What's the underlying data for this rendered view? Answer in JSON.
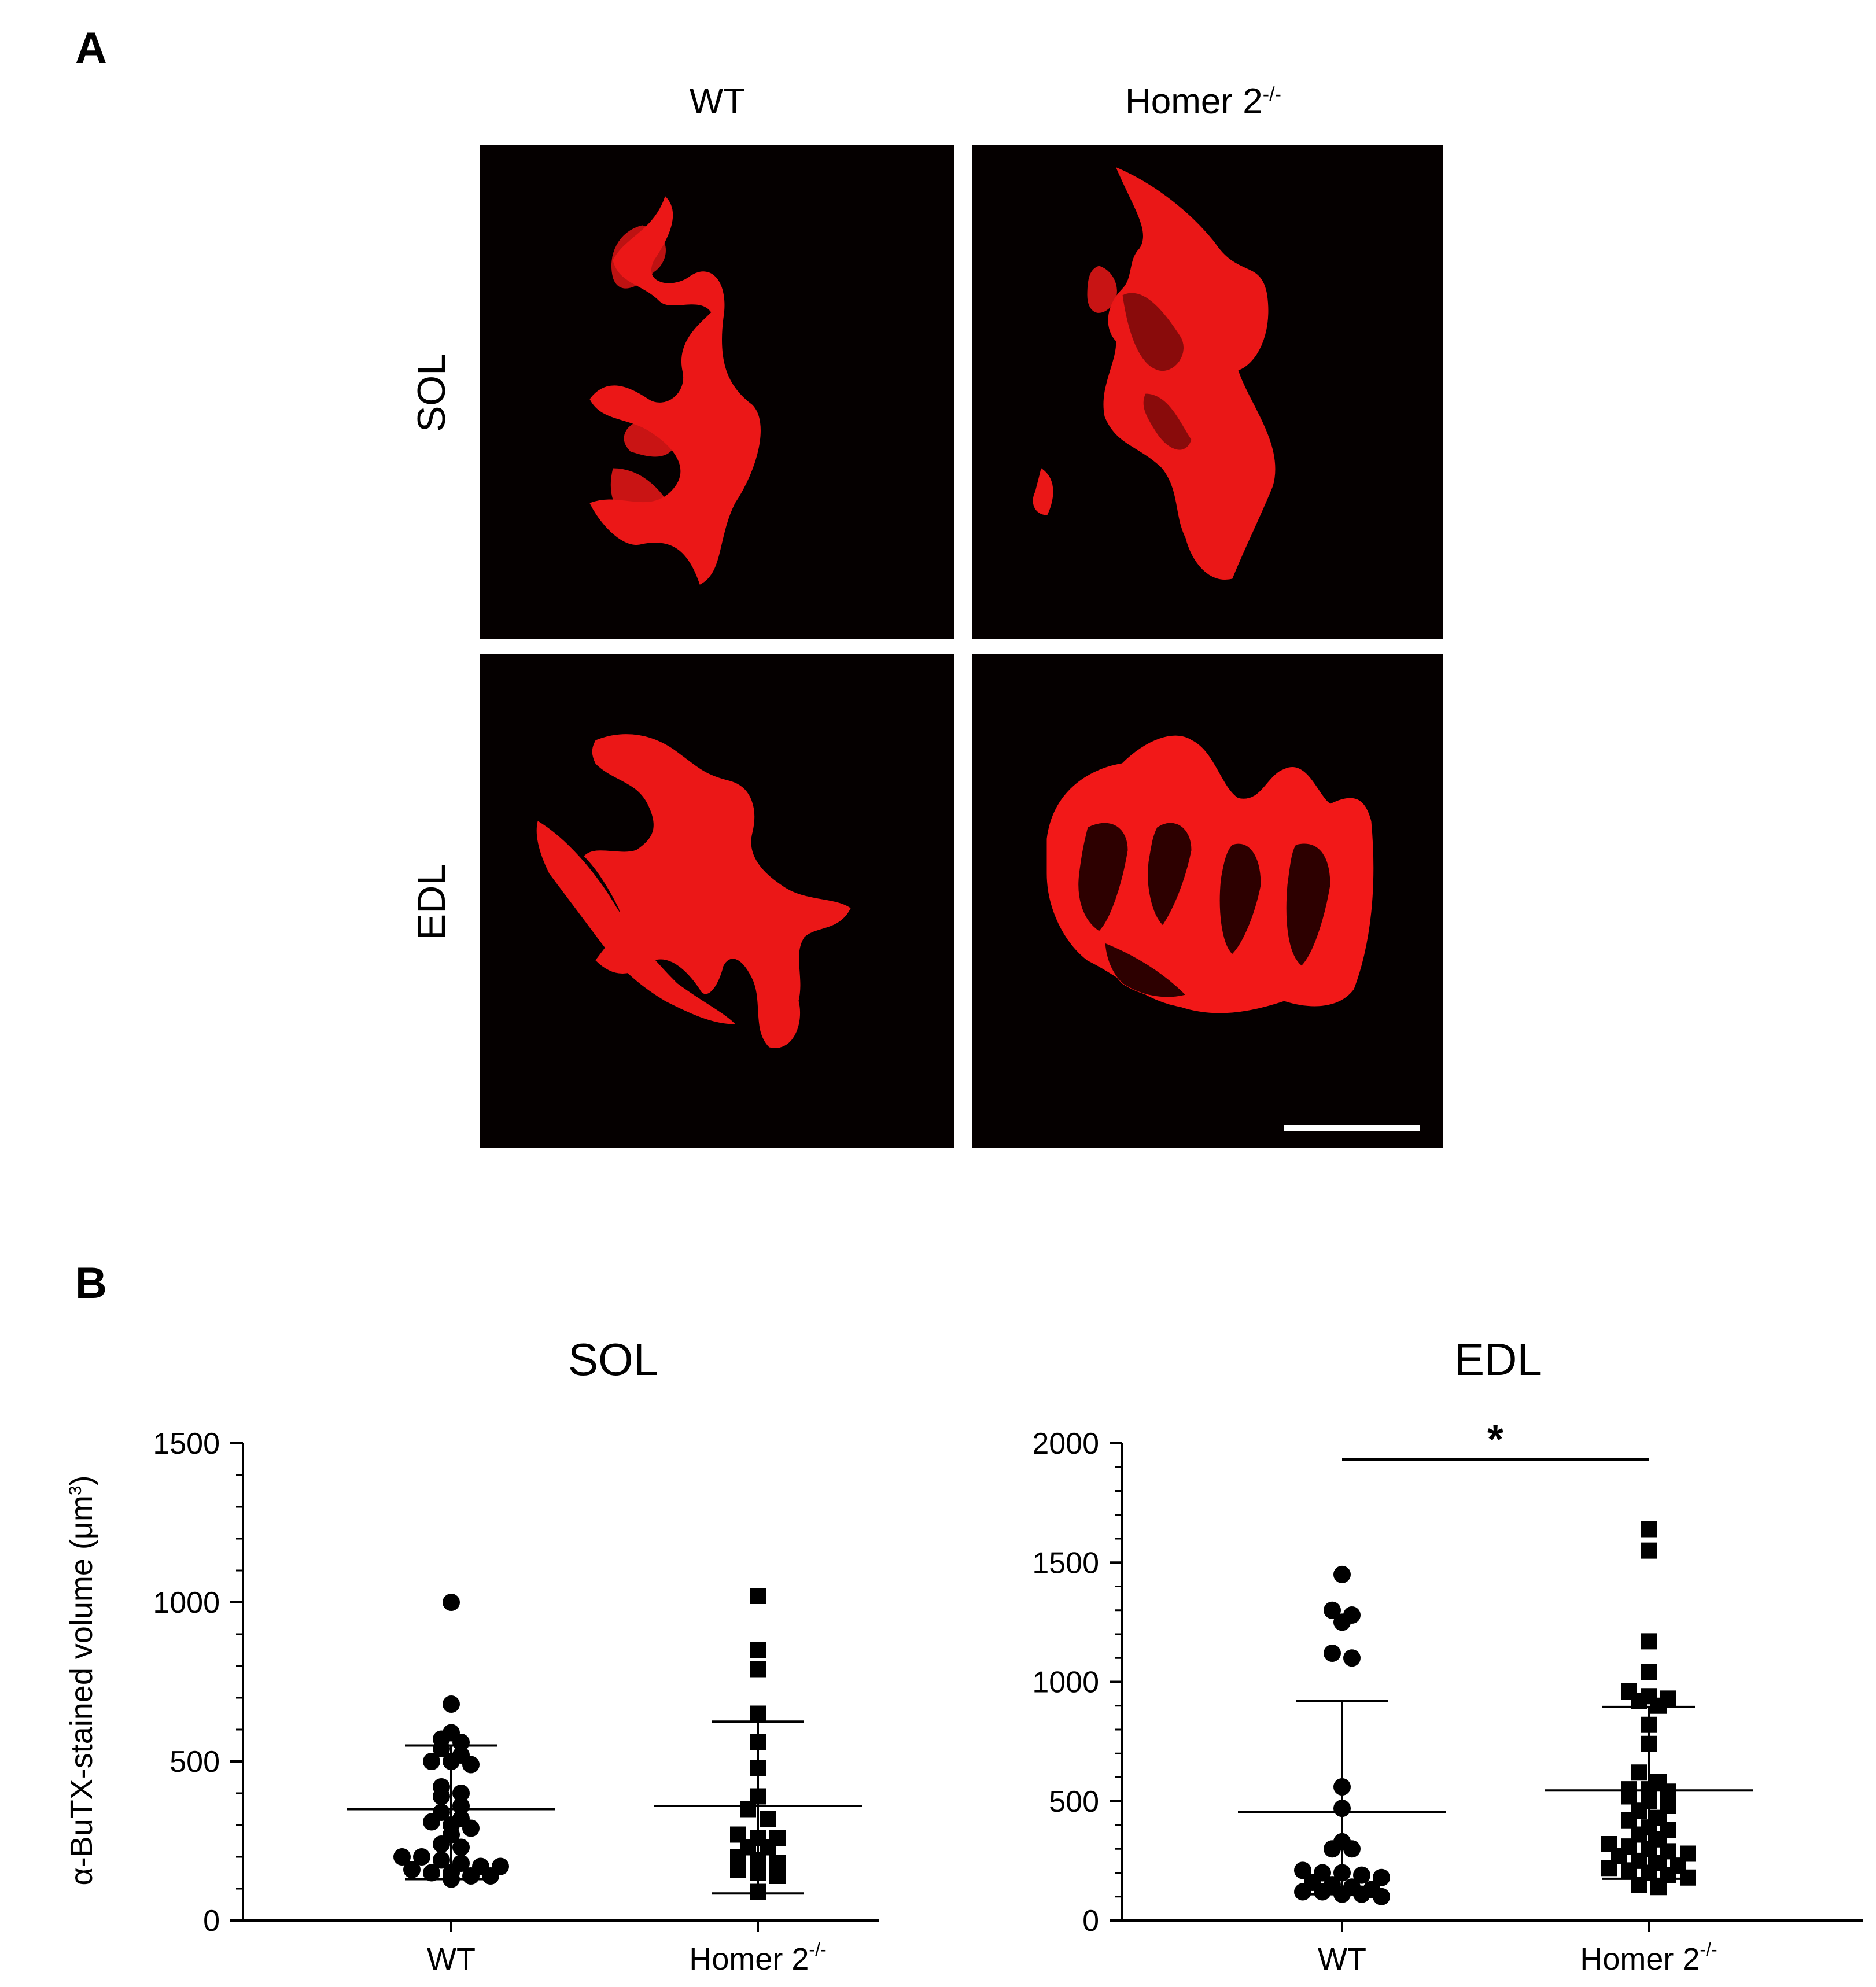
{
  "panel_a": {
    "letter": "A",
    "columns": [
      {
        "label": "WT",
        "sup": ""
      },
      {
        "label": "Homer 2",
        "sup": "-/-"
      }
    ],
    "rows": [
      "SOL",
      "EDL"
    ],
    "image_color": "#ff1a1a",
    "background_color": "#050000"
  },
  "panel_b": {
    "letter": "B",
    "ylabel": "α-BuTX-stained volume (μm",
    "ylabel_sup": "3",
    "ylabel_end": ")",
    "marker_color": "#000000"
  },
  "chart_data": [
    {
      "type": "scatter",
      "title": "SOL",
      "ylim": [
        0,
        1500
      ],
      "yticks": [
        0,
        500,
        1000,
        1500
      ],
      "categories": [
        "WT",
        "Homer 2-/-"
      ],
      "category_sup": [
        "",
        "-/-"
      ],
      "category_base": [
        "WT",
        "Homer 2"
      ],
      "series": [
        {
          "group": "WT",
          "marker": "circle",
          "mean": 350,
          "sd_upper": 550,
          "sd_lower": 130,
          "points": [
            1000,
            680,
            590,
            560,
            570,
            540,
            520,
            500,
            500,
            490,
            400,
            420,
            390,
            360,
            340,
            320,
            310,
            300,
            290,
            270,
            240,
            230,
            200,
            200,
            190,
            180,
            170,
            170,
            160,
            150,
            150,
            140,
            140,
            130
          ]
        },
        {
          "group": "Homer 2-/-",
          "marker": "square",
          "mean": 360,
          "sd_upper": 625,
          "sd_lower": 85,
          "points": [
            1020,
            850,
            790,
            650,
            560,
            480,
            390,
            350,
            320,
            270,
            260,
            260,
            230,
            230,
            200,
            190,
            180,
            160,
            150,
            140,
            90
          ]
        }
      ],
      "significance": ""
    },
    {
      "type": "scatter",
      "title": "EDL",
      "ylim": [
        0,
        2000
      ],
      "yticks": [
        0,
        500,
        1000,
        1500,
        2000
      ],
      "categories": [
        "WT",
        "Homer 2-/-"
      ],
      "category_sup": [
        "",
        "-/-"
      ],
      "category_base": [
        "WT",
        "Homer 2"
      ],
      "series": [
        {
          "group": "WT",
          "marker": "circle",
          "mean": 455,
          "sd_upper": 920,
          "sd_lower": 110,
          "points": [
            1450,
            1300,
            1280,
            1250,
            1120,
            1100,
            560,
            470,
            330,
            300,
            300,
            210,
            200,
            200,
            190,
            180,
            160,
            150,
            140,
            130,
            120,
            120,
            110,
            110,
            100
          ]
        },
        {
          "group": "Homer 2-/-",
          "marker": "square",
          "mean": 545,
          "sd_upper": 895,
          "sd_lower": 175,
          "points": [
            1640,
            1550,
            1170,
            1040,
            960,
            940,
            930,
            920,
            900,
            820,
            740,
            620,
            580,
            550,
            550,
            540,
            520,
            500,
            480,
            460,
            430,
            420,
            390,
            380,
            360,
            340,
            320,
            310,
            300,
            290,
            280,
            270,
            250,
            240,
            230,
            220,
            210,
            200,
            190,
            180,
            150,
            140
          ]
        }
      ],
      "significance": "*"
    }
  ]
}
